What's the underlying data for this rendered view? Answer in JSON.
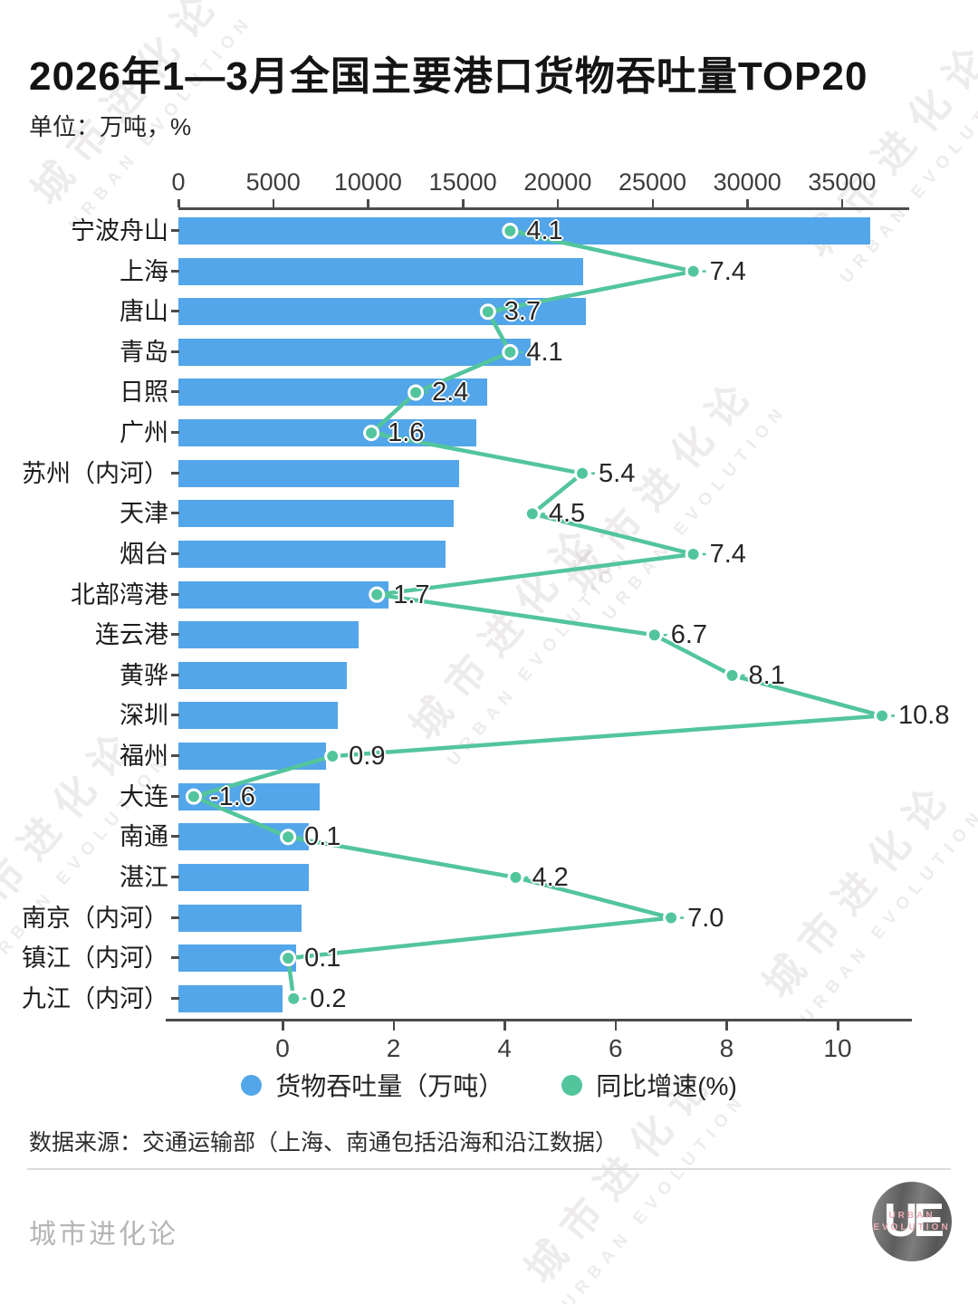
{
  "header": {
    "title": "2026年1—3月全国主要港口货物吞吐量TOP20",
    "unit_label": "单位：万吨，%"
  },
  "watermark": {
    "cn": "城市进化论",
    "en": "URBAN EVOLUTION"
  },
  "chart_data": {
    "type": "bar",
    "orientation": "horizontal",
    "title": "2026年1—3月全国主要港口货物吞吐量TOP20",
    "unit": "万吨, %",
    "categories": [
      "宁波舟山",
      "上海",
      "唐山",
      "青岛",
      "日照",
      "广州",
      "苏州（内河）",
      "天津",
      "烟台",
      "北部湾港",
      "连云港",
      "黄骅",
      "深圳",
      "福州",
      "大连",
      "南通",
      "湛江",
      "南京（内河）",
      "镇江（内河）",
      "九江（内河）"
    ],
    "series": [
      {
        "name": "货物吞吐量（万吨）",
        "type": "bar",
        "axis": "top",
        "color": "#53a6e9",
        "values": [
          36500,
          21350,
          21500,
          18600,
          16300,
          15700,
          14800,
          14500,
          14100,
          11100,
          9500,
          8900,
          8400,
          7800,
          7450,
          6900,
          6870,
          6500,
          6200,
          5500
        ]
      },
      {
        "name": "同比增速(%)",
        "type": "line",
        "axis": "bottom",
        "color": "#53c59d",
        "values": [
          4.1,
          7.4,
          3.7,
          4.1,
          2.4,
          1.6,
          5.4,
          4.5,
          7.4,
          1.7,
          6.7,
          8.1,
          10.8,
          0.9,
          -1.6,
          0.1,
          4.2,
          7.0,
          0.1,
          0.2
        ]
      }
    ],
    "top_axis": {
      "ticks": [
        0,
        5000,
        10000,
        15000,
        20000,
        25000,
        30000,
        35000
      ],
      "range": [
        0,
        38500
      ]
    },
    "bottom_axis": {
      "ticks": [
        0,
        2,
        4,
        6,
        8,
        10
      ],
      "range": [
        -2.1,
        11.3
      ]
    },
    "legend_position": "bottom",
    "grid": false
  },
  "legend": {
    "items": [
      {
        "label": "货物吞吐量（万吨）",
        "color": "#53a6e9"
      },
      {
        "label": "同比增速(%)",
        "color": "#53c59d"
      }
    ]
  },
  "footer": {
    "source": "数据来源：交通运输部（上海、南通包括沿海和沿江数据）",
    "brand": "城市进化论",
    "logo": {
      "initials": "UE",
      "line1": "URBAN",
      "line2": "EVOLUTION"
    }
  }
}
